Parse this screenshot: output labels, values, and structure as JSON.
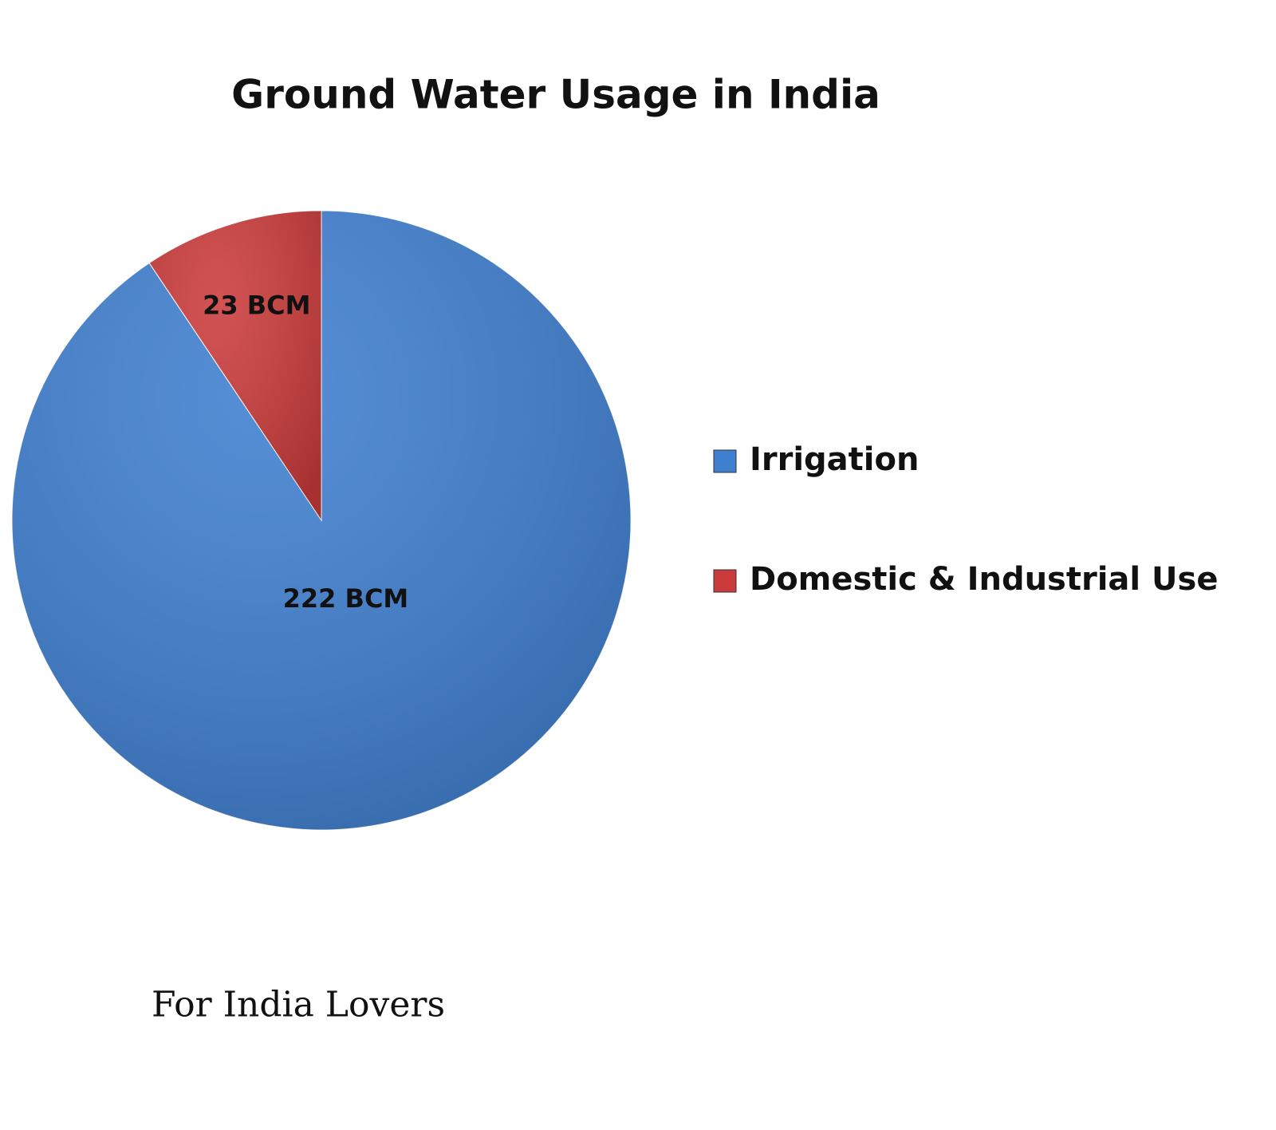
{
  "chart_data": {
    "type": "pie",
    "title": "Ground Water Usage in India",
    "categories": [
      "Irrigation",
      "Domestic & Industrial Use"
    ],
    "values": [
      222,
      23
    ],
    "value_labels": [
      "222 BCM",
      "23 BCM"
    ],
    "colors": [
      "#3f7fd0",
      "#cc3b3b"
    ],
    "annotation": "For India Lovers"
  }
}
